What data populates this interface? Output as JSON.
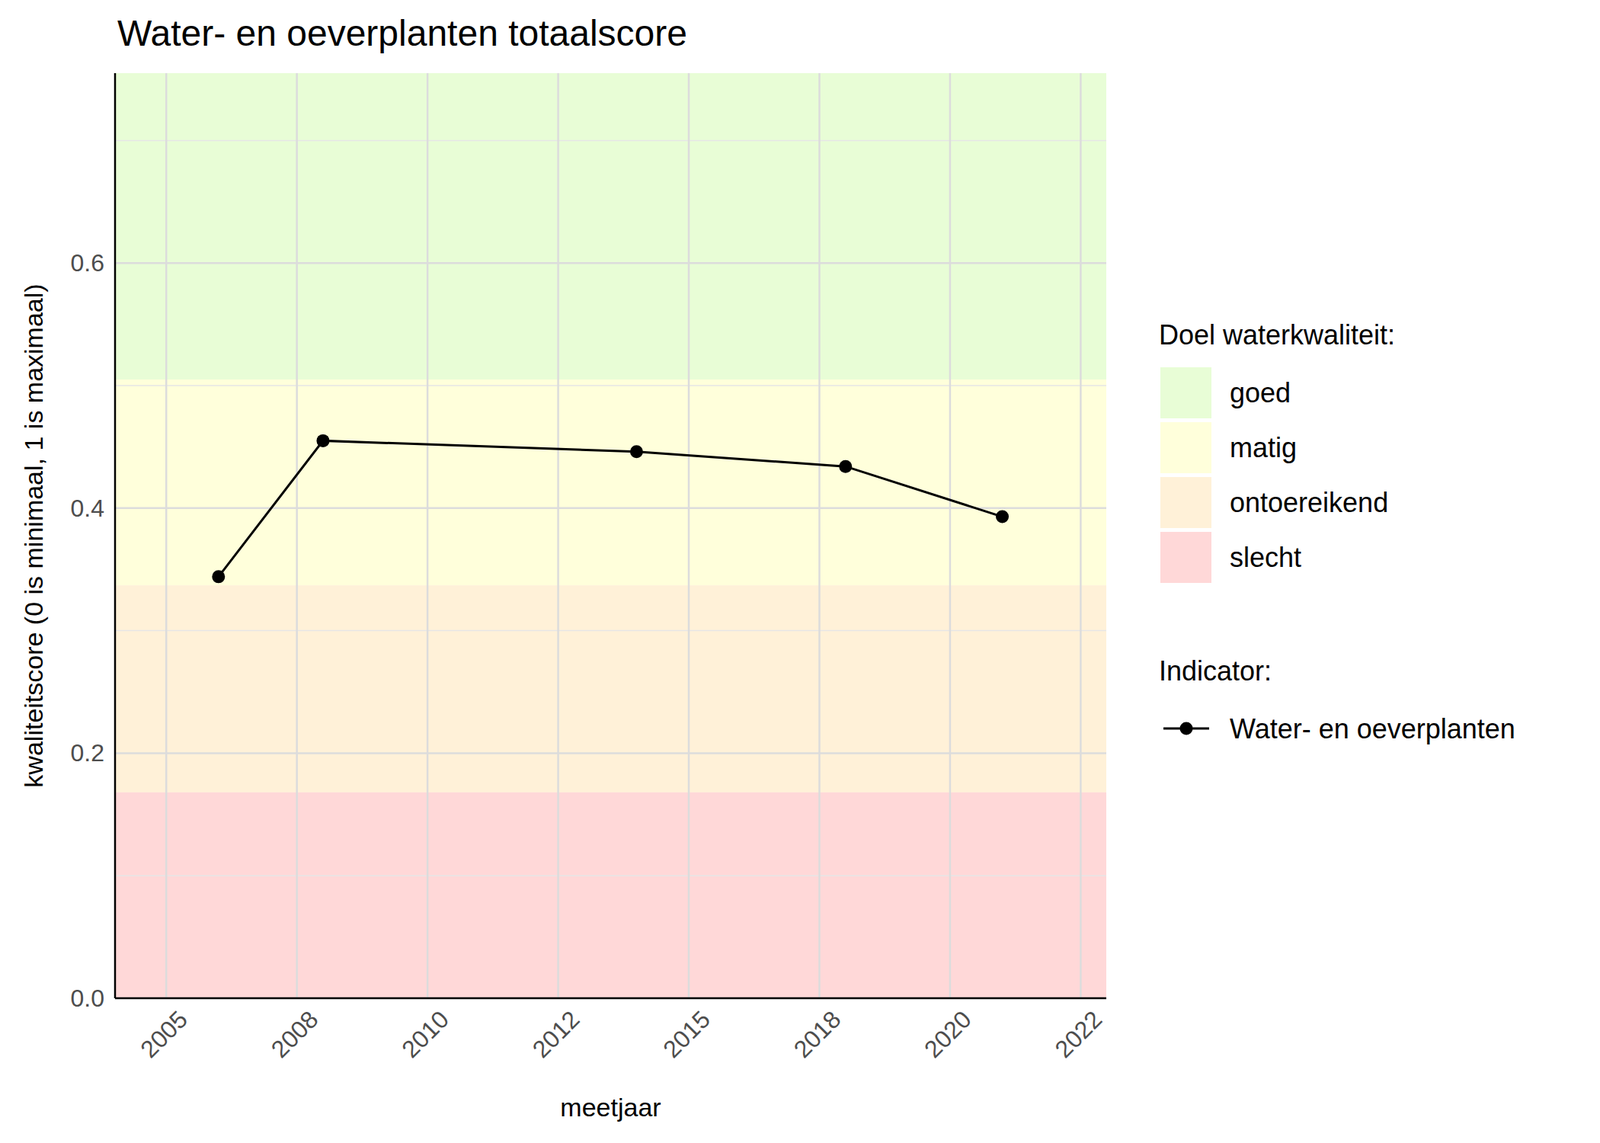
{
  "chart_data": {
    "type": "line",
    "title": "Water- en oeverplanten totaalscore",
    "x_label": "meetjaar",
    "y_label": "kwaliteitscore (0 is minimaal, 1 is maximaal)",
    "x": [
      2006,
      2008,
      2014,
      2018,
      2021
    ],
    "series": [
      {
        "name": "Water- en oeverplanten",
        "color": "#000000",
        "marker": "circle",
        "line_style": "solid",
        "values": [
          0.344,
          0.455,
          0.446,
          0.434,
          0.393
        ]
      }
    ],
    "xlim": [
      2004.02,
      2022.99
    ],
    "xticks": [
      2005,
      {
        "value": 2007.5,
        "label": "2008"
      },
      2010,
      {
        "value": 2012.5,
        "label": "2012"
      },
      2015,
      {
        "value": 2017.5,
        "label": "2018"
      },
      2020,
      {
        "value": 2022.5,
        "label": "2022"
      }
    ],
    "ylim": [
      0,
      0.755
    ],
    "yticks": [
      {
        "value": 0,
        "label": "0.0"
      },
      0.2,
      0.4,
      0.6
    ],
    "grid": true,
    "legend": "right",
    "legend_title": "Indicator:",
    "bands_title": "Doel waterkwaliteit:",
    "bands": [
      {
        "name": "goed",
        "from": 0.505,
        "to": 0.755,
        "color": "#e8fdd6"
      },
      {
        "name": "matig",
        "from": 0.337,
        "to": 0.505,
        "color": "#ffffdb"
      },
      {
        "name": "ontoereikend",
        "from": 0.168,
        "to": 0.337,
        "color": "#fff1d8"
      },
      {
        "name": "slecht",
        "from": 0,
        "to": 0.168,
        "color": "#ffd8d8"
      }
    ]
  }
}
